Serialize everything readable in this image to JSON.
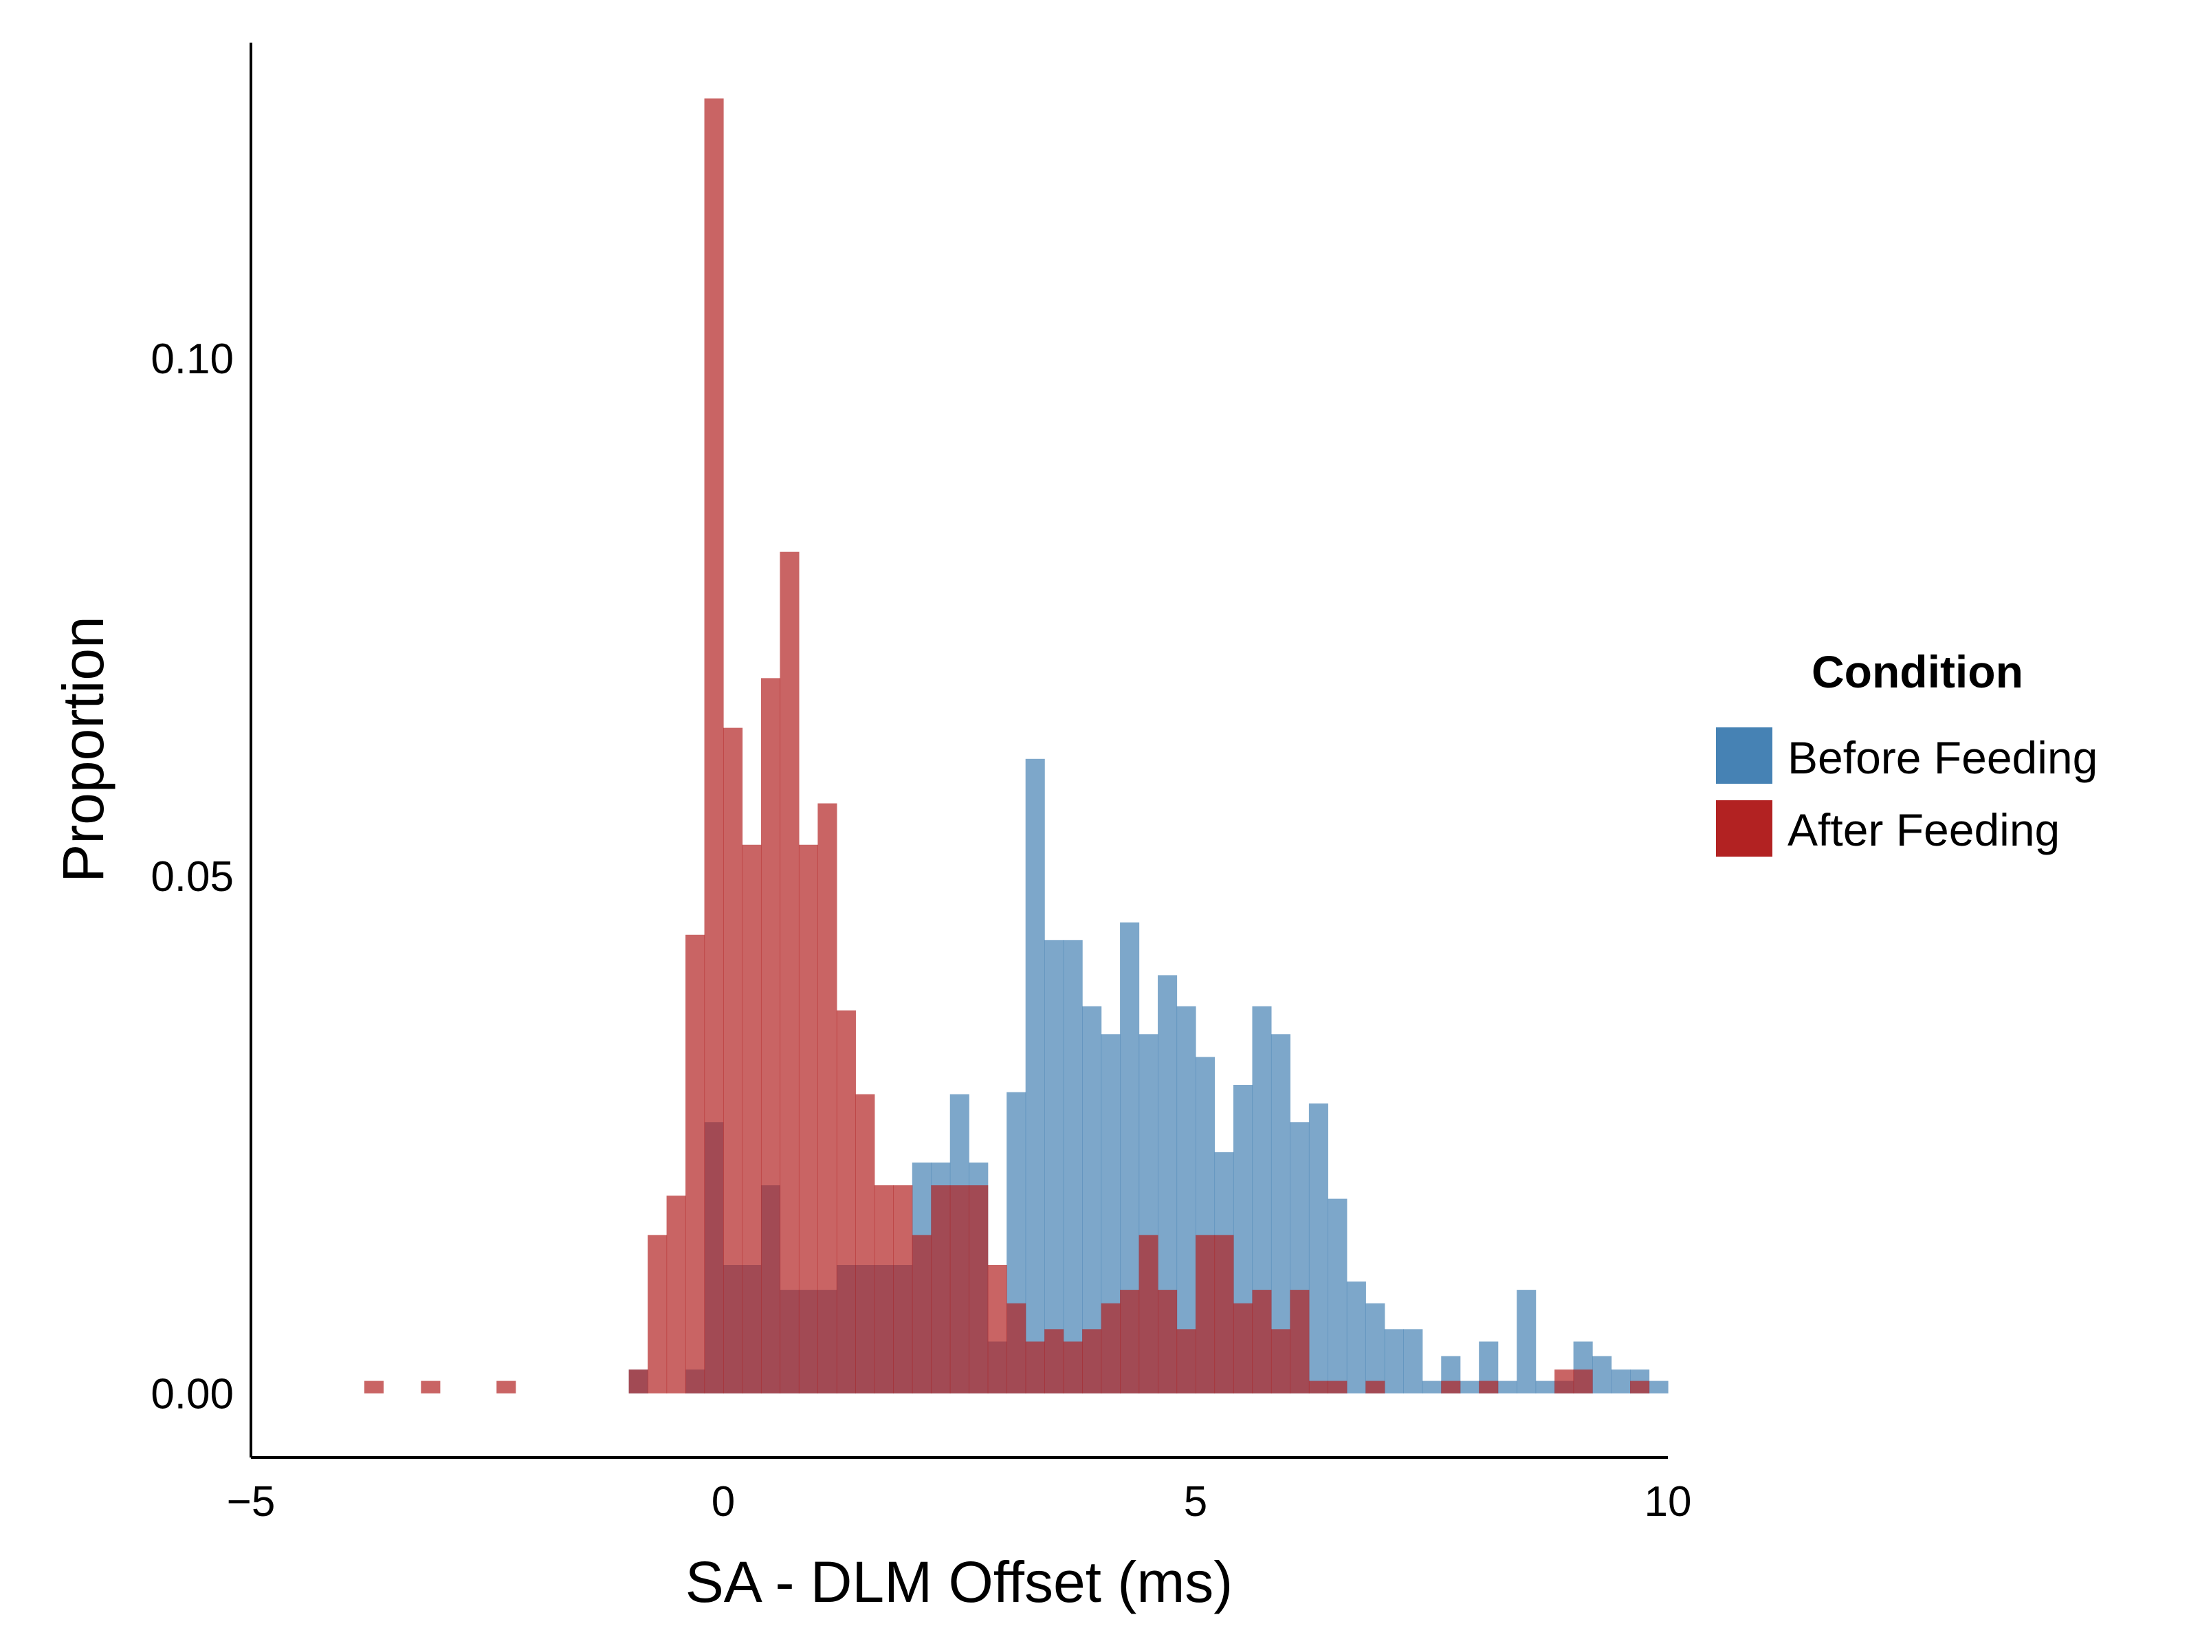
{
  "chart_data": {
    "type": "bar",
    "title": "",
    "xlabel": "SA - DLM Offset (ms)",
    "ylabel": "Proportion",
    "xlim": [
      -5,
      10
    ],
    "ylim": [
      -0.0062,
      0.1305
    ],
    "xticks": [
      -5,
      0,
      5,
      10
    ],
    "xtick_labels": [
      "−5",
      "0",
      "5",
      "10"
    ],
    "yticks": [
      0.0,
      0.05,
      0.1
    ],
    "ytick_labels": [
      "0.00",
      "0.05",
      "0.10"
    ],
    "bin_width": 0.2,
    "legend": {
      "title": "Condition",
      "position": "right",
      "entries": [
        {
          "name": "Before Feeding",
          "color": "#4682b4"
        },
        {
          "name": "After Feeding",
          "color": "#b22222"
        }
      ]
    },
    "series": [
      {
        "name": "Before Feeding",
        "color": "#4682b4",
        "opacity": 0.7,
        "bins": [
          [
            -1.0,
            0.0023
          ],
          [
            -0.8,
            0.0
          ],
          [
            -0.6,
            0.0
          ],
          [
            -0.4,
            0.0023
          ],
          [
            -0.2,
            0.0262
          ],
          [
            0.0,
            0.0124
          ],
          [
            0.2,
            0.0124
          ],
          [
            0.4,
            0.0201
          ],
          [
            0.6,
            0.01
          ],
          [
            0.8,
            0.01
          ],
          [
            1.0,
            0.01
          ],
          [
            1.2,
            0.0124
          ],
          [
            1.4,
            0.0124
          ],
          [
            1.6,
            0.0124
          ],
          [
            1.8,
            0.0124
          ],
          [
            2.0,
            0.0223
          ],
          [
            2.2,
            0.0223
          ],
          [
            2.4,
            0.0289
          ],
          [
            2.6,
            0.0223
          ],
          [
            2.8,
            0.005
          ],
          [
            3.0,
            0.0291
          ],
          [
            3.2,
            0.0613
          ],
          [
            3.4,
            0.0438
          ],
          [
            3.6,
            0.0438
          ],
          [
            3.8,
            0.0374
          ],
          [
            4.0,
            0.0347
          ],
          [
            4.2,
            0.0455
          ],
          [
            4.4,
            0.0347
          ],
          [
            4.6,
            0.0404
          ],
          [
            4.8,
            0.0374
          ],
          [
            5.0,
            0.0325
          ],
          [
            5.2,
            0.0233
          ],
          [
            5.4,
            0.0298
          ],
          [
            5.6,
            0.0374
          ],
          [
            5.8,
            0.0347
          ],
          [
            6.0,
            0.0262
          ],
          [
            6.2,
            0.028
          ],
          [
            6.4,
            0.0188
          ],
          [
            6.6,
            0.0108
          ],
          [
            6.8,
            0.0087
          ],
          [
            7.0,
            0.0062
          ],
          [
            7.2,
            0.0062
          ],
          [
            7.4,
            0.0012
          ],
          [
            7.6,
            0.0036
          ],
          [
            7.8,
            0.0012
          ],
          [
            8.0,
            0.005
          ],
          [
            8.2,
            0.0012
          ],
          [
            8.4,
            0.01
          ],
          [
            8.6,
            0.0012
          ],
          [
            8.8,
            0.0012
          ],
          [
            9.0,
            0.005
          ],
          [
            9.2,
            0.0036
          ],
          [
            9.4,
            0.0023
          ],
          [
            9.6,
            0.0023
          ],
          [
            9.8,
            0.0012
          ]
        ]
      },
      {
        "name": "After Feeding",
        "color": "#b22222",
        "opacity": 0.7,
        "bins": [
          [
            -3.8,
            0.0012
          ],
          [
            -3.2,
            0.0012
          ],
          [
            -2.4,
            0.0012
          ],
          [
            -1.0,
            0.0023
          ],
          [
            -0.8,
            0.0153
          ],
          [
            -0.6,
            0.0191
          ],
          [
            -0.4,
            0.0443
          ],
          [
            -0.2,
            0.1251
          ],
          [
            0.0,
            0.0643
          ],
          [
            0.2,
            0.053
          ],
          [
            0.4,
            0.0691
          ],
          [
            0.6,
            0.0813
          ],
          [
            0.8,
            0.053
          ],
          [
            1.0,
            0.057
          ],
          [
            1.2,
            0.037
          ],
          [
            1.4,
            0.0289
          ],
          [
            1.6,
            0.0201
          ],
          [
            1.8,
            0.0201
          ],
          [
            2.0,
            0.0153
          ],
          [
            2.2,
            0.0201
          ],
          [
            2.4,
            0.0201
          ],
          [
            2.6,
            0.0201
          ],
          [
            2.8,
            0.0124
          ],
          [
            3.0,
            0.0087
          ],
          [
            3.2,
            0.005
          ],
          [
            3.4,
            0.0062
          ],
          [
            3.6,
            0.005
          ],
          [
            3.8,
            0.0062
          ],
          [
            4.0,
            0.0087
          ],
          [
            4.2,
            0.01
          ],
          [
            4.4,
            0.0153
          ],
          [
            4.6,
            0.01
          ],
          [
            4.8,
            0.0062
          ],
          [
            5.0,
            0.0153
          ],
          [
            5.2,
            0.0153
          ],
          [
            5.4,
            0.0087
          ],
          [
            5.6,
            0.01
          ],
          [
            5.8,
            0.0062
          ],
          [
            6.0,
            0.01
          ],
          [
            6.2,
            0.0012
          ],
          [
            6.4,
            0.0012
          ],
          [
            6.8,
            0.0012
          ],
          [
            7.6,
            0.0012
          ],
          [
            8.0,
            0.0012
          ],
          [
            8.8,
            0.0023
          ],
          [
            9.0,
            0.0023
          ],
          [
            9.6,
            0.0012
          ]
        ]
      }
    ]
  }
}
